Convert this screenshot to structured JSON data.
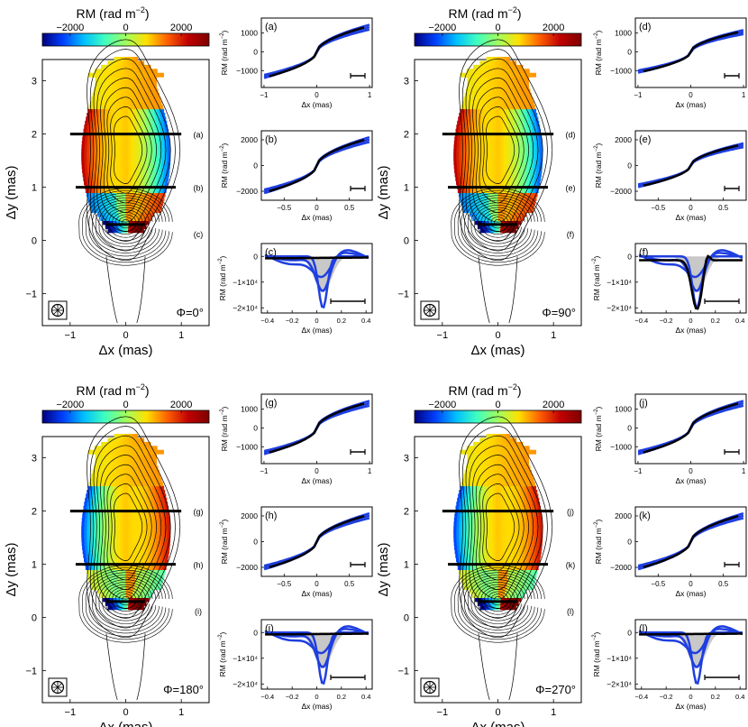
{
  "chart_data": {
    "type": "mixed",
    "colorbar": {
      "label_base": "RM (rad m",
      "label_exp": "−2",
      "label_tail": ")",
      "range": [
        -3000,
        3000
      ],
      "ticks": [
        "−2000",
        "0",
        "2000"
      ],
      "tick_values": [
        -2000,
        0,
        2000
      ],
      "colors": [
        "#00007f",
        "#0040ff",
        "#00c0ff",
        "#40ffbf",
        "#a0ff60",
        "#ffe000",
        "#ff6000",
        "#c00000",
        "#7f0000"
      ]
    },
    "maps": {
      "x_label": "Δx (mas)",
      "y_label": "Δy (mas)",
      "x_range": [
        -1.5,
        1.5
      ],
      "y_range": [
        -1.6,
        3.4
      ],
      "x_ticks": [
        "−1",
        "0",
        "1"
      ],
      "x_tick_values": [
        -1,
        0,
        1
      ],
      "y_ticks": [
        "−1",
        "0",
        "1",
        "2",
        "3"
      ],
      "y_tick_values": [
        -1,
        0,
        1,
        2,
        3
      ],
      "cut_y": [
        2.0,
        1.0,
        0.3
      ],
      "cut_halfwidth": [
        1.0,
        0.9,
        0.35
      ],
      "panels": [
        {
          "phi": "Φ=0°",
          "cut_labels": [
            "(a)",
            "(b)",
            "(c)"
          ],
          "left_sign": -1
        },
        {
          "phi": "Φ=90°",
          "cut_labels": [
            "(d)",
            "(e)",
            "(f)"
          ],
          "left_sign": -1
        },
        {
          "phi": "Φ=180°",
          "cut_labels": [
            "(g)",
            "(h)",
            "(i)"
          ],
          "left_sign": 1
        },
        {
          "phi": "Φ=270°",
          "cut_labels": [
            "(j)",
            "(k)",
            "(l)"
          ],
          "left_sign": 1
        }
      ]
    },
    "profiles": {
      "y_label_base": "RM (rad m",
      "y_label_exp": "−2",
      "y_label_tail": ")",
      "x_label": "Δx (mas)",
      "series_colors": {
        "model": "#000000",
        "observed": "#1f3fe0"
      },
      "row_types": [
        {
          "x_range": [
            -1.05,
            1.05
          ],
          "x_ticks": [
            "−1",
            "0",
            "1"
          ],
          "x_tick_values": [
            -1,
            0,
            1
          ],
          "y_range": [
            -1900,
            1800
          ],
          "y_ticks": [
            "1000",
            "0",
            "−1000"
          ],
          "y_tick_values": [
            1000,
            0,
            -1000
          ]
        },
        {
          "x_range": [
            -0.85,
            0.85
          ],
          "x_ticks": [
            "−0.5",
            "0",
            "0.5"
          ],
          "x_tick_values": [
            -0.5,
            0,
            0.5
          ],
          "y_range": [
            -2700,
            2700
          ],
          "y_ticks": [
            "2000",
            "0",
            "−2000"
          ],
          "y_tick_values": [
            2000,
            0,
            -2000
          ]
        },
        {
          "x_range": [
            -0.45,
            0.45
          ],
          "x_ticks": [
            "−0.4",
            "−0.2",
            "0",
            "0.2",
            "0.4"
          ],
          "x_tick_values": [
            -0.4,
            -0.2,
            0,
            0.2,
            0.4
          ],
          "y_range": [
            -22000,
            5000
          ],
          "y_ticks": [
            "0",
            "−1×10⁴",
            "−2×10⁴"
          ],
          "y_tick_values": [
            0,
            -10000,
            -20000
          ]
        }
      ],
      "panels": [
        {
          "label": "(a)",
          "row": 0,
          "amp": 1500
        },
        {
          "label": "(b)",
          "row": 1,
          "amp": 2300
        },
        {
          "label": "(c)",
          "row": 2,
          "dip": [
            0.05,
            -20000
          ],
          "notch": null
        },
        {
          "label": "(d)",
          "row": 0,
          "amp": 1200
        },
        {
          "label": "(e)",
          "row": 1,
          "amp": 1800
        },
        {
          "label": "(f)",
          "row": 2,
          "dip": [
            0.05,
            -20000
          ],
          "notch": [
            0.13,
            4000
          ]
        },
        {
          "label": "(g)",
          "row": 0,
          "amp": 1500
        },
        {
          "label": "(h)",
          "row": 1,
          "amp": 2300
        },
        {
          "label": "(i)",
          "row": 2,
          "dip": [
            0.05,
            -20000
          ],
          "notch": null
        },
        {
          "label": "(j)",
          "row": 0,
          "amp": 1500
        },
        {
          "label": "(k)",
          "row": 1,
          "amp": 2300
        },
        {
          "label": "(l)",
          "row": 2,
          "dip": [
            0.05,
            -20000
          ],
          "notch": null
        }
      ]
    }
  }
}
